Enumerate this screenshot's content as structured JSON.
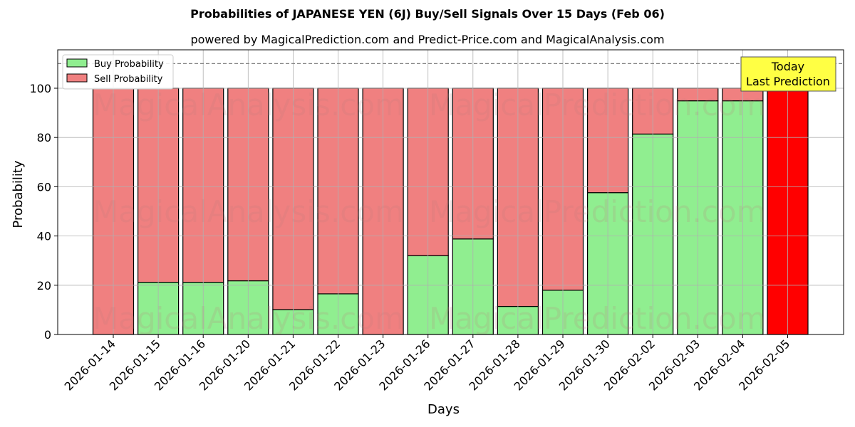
{
  "chart_data": {
    "type": "bar",
    "stacked": true,
    "title": "Probabilities of JAPANESE YEN (6J) Buy/Sell Signals Over 15 Days (Feb 06)",
    "subtitle": "powered by MagicalPrediction.com and Predict-Price.com and MagicalAnalysis.com",
    "xlabel": "Days",
    "ylabel": "Probability",
    "ylim": [
      0,
      115.6
    ],
    "yticks": [
      0,
      20,
      40,
      60,
      80,
      100
    ],
    "grid": true,
    "legend_position": "upper left",
    "reference_line": {
      "y": 110,
      "style": "dashed",
      "color": "#808080"
    },
    "categories": [
      "2026-01-14",
      "2026-01-15",
      "2026-01-16",
      "2026-01-20",
      "2026-01-21",
      "2026-01-22",
      "2026-01-23",
      "2026-01-26",
      "2026-01-27",
      "2026-01-28",
      "2026-01-29",
      "2026-01-30",
      "2026-02-02",
      "2026-02-03",
      "2026-02-04",
      "2026-02-05"
    ],
    "series": [
      {
        "name": "Buy Probability",
        "color": "#90EE90",
        "values": [
          0,
          21.2,
          21.2,
          21.8,
          10.1,
          16.5,
          0,
          32.0,
          38.8,
          11.4,
          18.0,
          57.6,
          81.4,
          94.9,
          94.9,
          0
        ]
      },
      {
        "name": "Sell Probability",
        "color": "#F08080",
        "values": [
          100,
          78.8,
          78.8,
          78.2,
          89.9,
          83.5,
          100,
          68.0,
          61.2,
          88.6,
          82.0,
          42.4,
          18.6,
          5.1,
          5.1,
          100
        ]
      }
    ],
    "highlight": {
      "index": 15,
      "color": "#FF0000",
      "annotation": [
        "Today",
        "Last Prediction"
      ],
      "annotation_bg": "#FFFF44"
    },
    "watermarks": [
      "MagicalAnalysis.com",
      "MagicalPrediction.com"
    ]
  }
}
